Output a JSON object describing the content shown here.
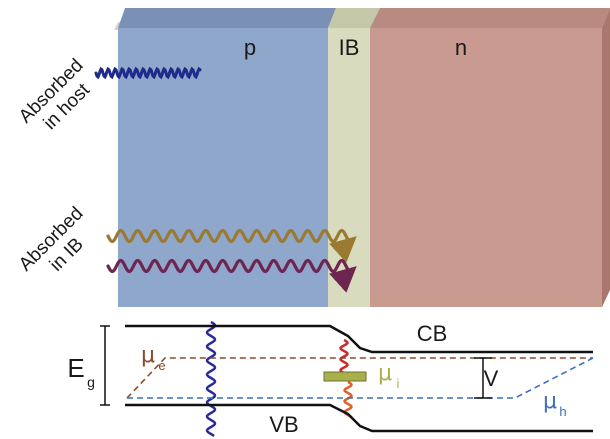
{
  "regions": {
    "p": "p",
    "ib": "IB",
    "n": "n"
  },
  "side_labels": {
    "host_line1": "Absorbed",
    "host_line2": "in host",
    "ib_line1": "Absorbed",
    "ib_line2": "in IB"
  },
  "band_labels": {
    "cb": "CB",
    "vb": "VB",
    "eg_main": "E",
    "eg_sub": "g",
    "mu_e_main": "μ",
    "mu_e_sub": "e",
    "mu_i_main": "μ",
    "mu_i_sub": "i",
    "mu_h_main": "μ",
    "mu_h_sub": "h",
    "v": "V"
  },
  "colors": {
    "p_region": "#8fa7cb",
    "p_top": "#7a90b5",
    "ib_region": "#d8dbbd",
    "ib_top": "#c4c8a8",
    "n_region": "#c99b90",
    "n_top": "#b88a80",
    "n_side": "#a9776c",
    "host_photon": "#1f2a8a",
    "ib_photon_gold": "#9a7a30",
    "ib_photon_purple": "#6e2550",
    "mu_e_line": "#8b4a2a",
    "mu_h_line": "#3a6fc0",
    "mu_i_box": "#a9b04a",
    "red_arrow": "#cc2b2b",
    "orange_arrow": "#e0602a",
    "vertical_photon": "#2a2a9a"
  }
}
